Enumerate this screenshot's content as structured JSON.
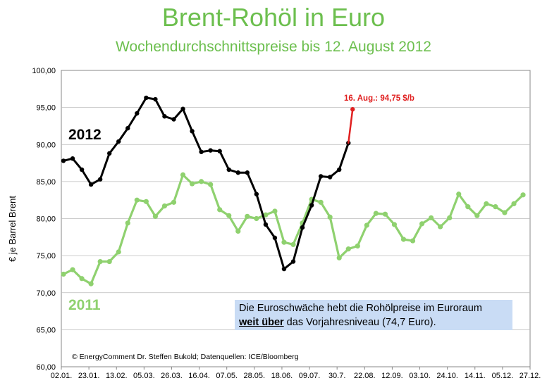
{
  "title": "Brent-Rohöl in Euro",
  "subtitle": "Wochendurchschnittspreise bis 12. August 2012",
  "ylabel": "€ je Barrel Brent",
  "info_box": {
    "line1": "Die Euroschwäche hebt die Rohölpreise im Euroraum",
    "emphasis": "weit über",
    "line2_rest": " das Vorjahresniveau (74,7 Euro)."
  },
  "credit": "© EnergyComment Dr. Steffen Bukold; Datenquellen: ICE/Bloomberg",
  "colors": {
    "series_2012": "#000000",
    "series_2011": "#8fd16f",
    "annotation": "#e02020",
    "title": "#6cbf4e",
    "info_box_bg": "#c9dcf5",
    "grid": "#bbbbbb"
  },
  "chart_data": {
    "type": "line",
    "ylim": [
      60,
      100
    ],
    "y_ticks": [
      "60,00",
      "65,00",
      "70,00",
      "75,00",
      "80,00",
      "85,00",
      "90,00",
      "95,00",
      "100,00"
    ],
    "x_ticks": [
      "02.01.",
      "23.01.",
      "13.02.",
      "05.03.",
      "26.03.",
      "16.04.",
      "07.05.",
      "28.05.",
      "18.06.",
      "09.07.",
      "30.7.",
      "22.08.",
      "12.09.",
      "03.10.",
      "24.10.",
      "14.11.",
      "05.12.",
      "27.12."
    ],
    "grid": true,
    "series": [
      {
        "name": "2012",
        "values": [
          87.8,
          88.1,
          86.6,
          84.6,
          85.3,
          88.8,
          90.4,
          92.2,
          94.2,
          96.3,
          96.1,
          93.8,
          93.4,
          94.8,
          91.8,
          89.0,
          89.2,
          89.1,
          86.6,
          86.2,
          86.2,
          83.3,
          79.2,
          77.4,
          73.2,
          74.2,
          78.8,
          81.8,
          85.7,
          85.6,
          86.6,
          90.2
        ]
      },
      {
        "name": "2011",
        "values": [
          72.5,
          73.1,
          71.9,
          71.2,
          74.2,
          74.2,
          75.5,
          79.4,
          82.5,
          82.3,
          80.3,
          81.7,
          82.2,
          85.9,
          84.7,
          85.0,
          84.6,
          81.2,
          80.4,
          78.3,
          80.3,
          80.0,
          80.5,
          81.0,
          76.8,
          76.5,
          79.4,
          82.6,
          82.2,
          80.2,
          74.7,
          75.9,
          76.3,
          79.1,
          80.7,
          80.6,
          79.2,
          77.2,
          77.0,
          79.3,
          80.1,
          78.9,
          80.1,
          83.3,
          81.6,
          80.4,
          82.0,
          81.6,
          80.8,
          82.0,
          83.2
        ]
      },
      {
        "name": "16. Aug.",
        "values": [
          90.2,
          94.75
        ]
      }
    ],
    "annotation": "16. Aug.: 94,75 $/b"
  }
}
